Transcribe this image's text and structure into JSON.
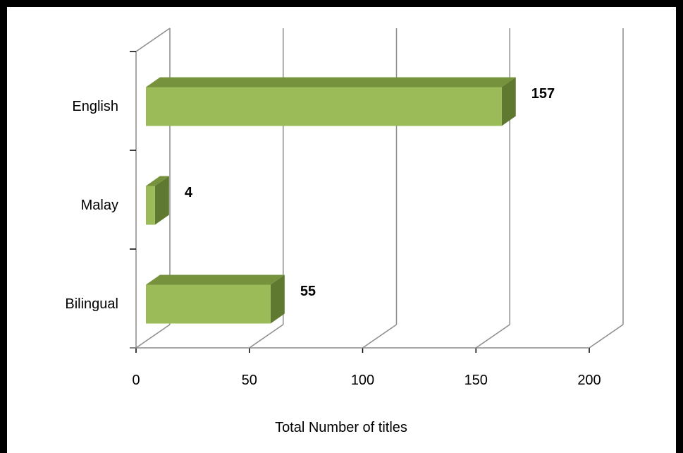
{
  "chart_data": {
    "type": "bar",
    "orientation": "horizontal",
    "three_d": true,
    "categories": [
      "English",
      "Malay",
      "Bilingual"
    ],
    "values": [
      157,
      4,
      55
    ],
    "data_labels": [
      "157",
      "4",
      "55"
    ],
    "xlabel": "Total Number of titles",
    "ylabel": "",
    "title": "",
    "xlim": [
      0,
      200
    ],
    "x_ticks": [
      "0",
      "50",
      "100",
      "150",
      "200"
    ],
    "grid": true,
    "legend": "none",
    "bar_color": "#9BBB59",
    "bar_shade_color": "#76923C"
  }
}
